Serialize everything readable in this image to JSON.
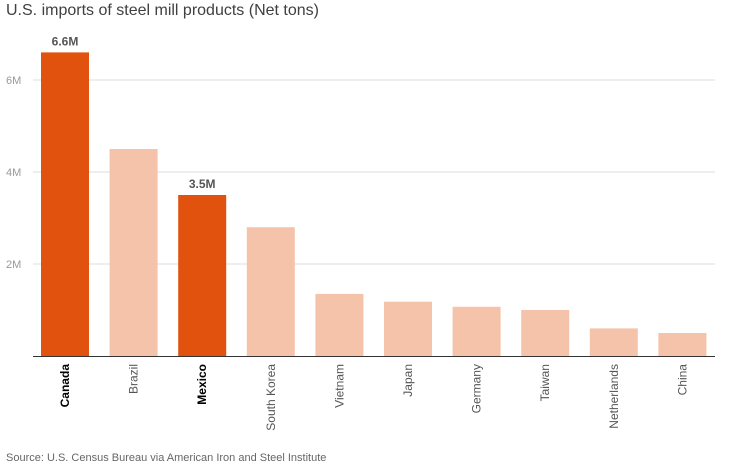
{
  "title": "U.S. imports of steel mill products (Net tons)",
  "source": "Source: U.S. Census Bureau via American Iron and Steel Institute",
  "colors": {
    "highlight": "#e2520f",
    "normal": "#f5c3a9",
    "grid": "#dddddd",
    "axis": "#333333",
    "tick_text": "#999999",
    "label_text": "#555555",
    "highlight_text": "#000000",
    "value_text": "#555555"
  },
  "chart_data": {
    "type": "bar",
    "title": "U.S. imports of steel mill products (Net tons)",
    "xlabel": "",
    "ylabel": "",
    "categories": [
      "Canada",
      "Brazil",
      "Mexico",
      "South Korea",
      "Vietnam",
      "Japan",
      "Germany",
      "Taiwan",
      "Netherlands",
      "China"
    ],
    "values": [
      6.6,
      4.5,
      3.5,
      2.8,
      1.35,
      1.18,
      1.07,
      1.0,
      0.6,
      0.5
    ],
    "value_unit": "million net tons",
    "highlighted": [
      "Canada",
      "Mexico"
    ],
    "value_labels": {
      "Canada": "6.6M",
      "Mexico": "3.5M"
    },
    "yticks": [
      2,
      4,
      6
    ],
    "ytick_labels": [
      "2M",
      "4M",
      "6M"
    ],
    "ylim": [
      0,
      7.2
    ],
    "grid": true,
    "legend": "none"
  }
}
